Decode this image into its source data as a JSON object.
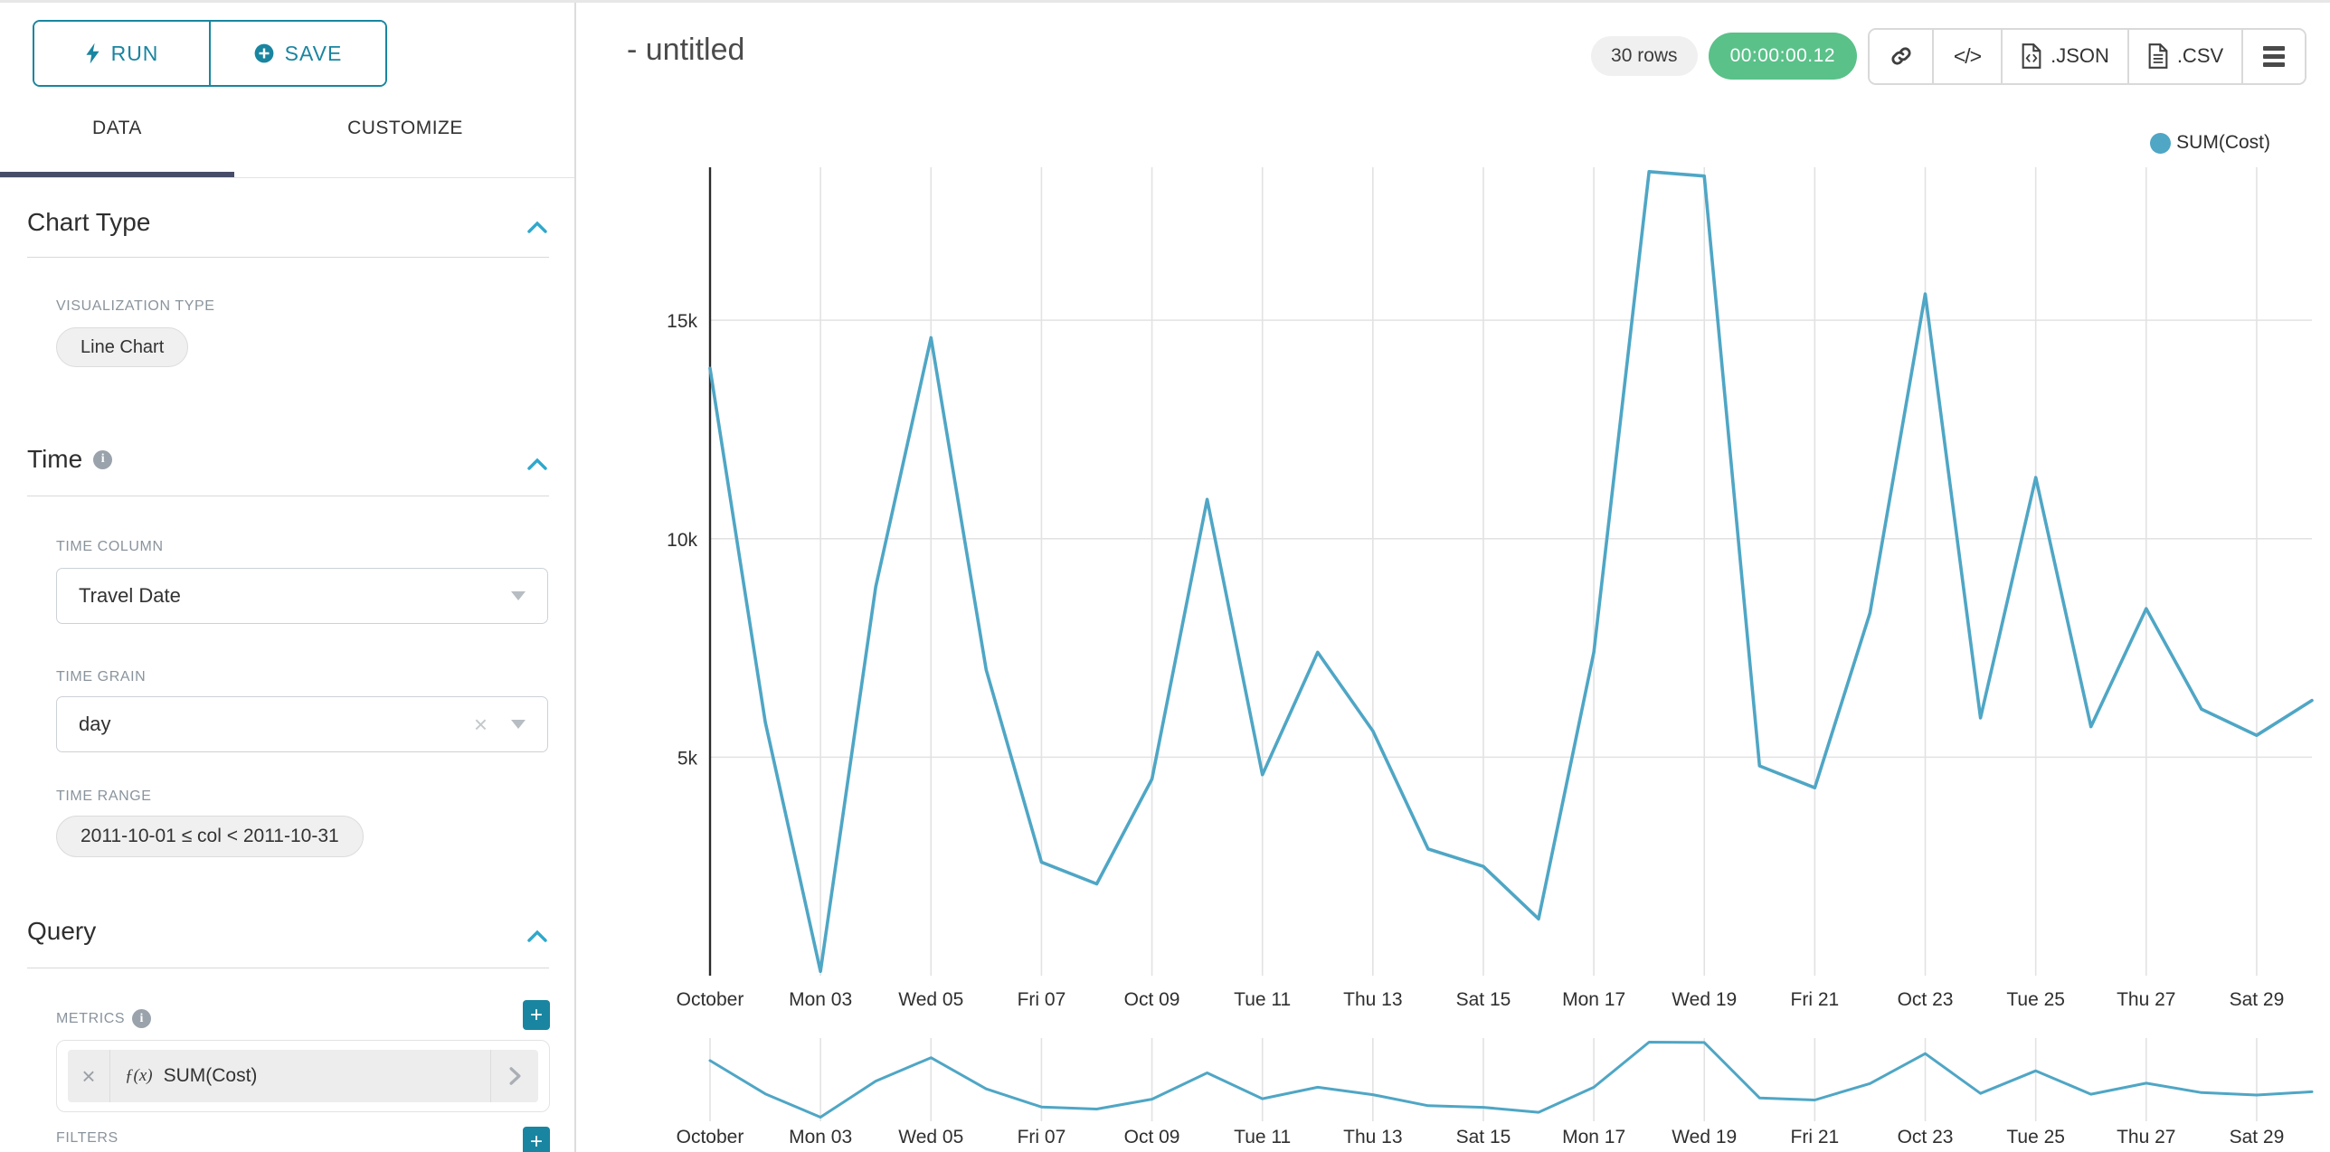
{
  "sidebar": {
    "run_button": {
      "label": "RUN"
    },
    "save_button": {
      "label": "SAVE"
    },
    "tabs": [
      {
        "label": "DATA"
      },
      {
        "label": "CUSTOMIZE"
      }
    ],
    "chart_type_section": {
      "title": "Chart Type",
      "visualization_type_label": "VISUALIZATION TYPE",
      "visualization_type_value": "Line Chart"
    },
    "time_section": {
      "title": "Time",
      "time_column_label": "TIME COLUMN",
      "time_column_value": "Travel Date",
      "time_grain_label": "TIME GRAIN",
      "time_grain_value": "day",
      "time_range_label": "TIME RANGE",
      "time_range_value": "2011-10-01 ≤ col < 2011-10-31"
    },
    "query_section": {
      "title": "Query",
      "metrics_label": "METRICS",
      "metric": {
        "fx": "ƒ(x)",
        "label": "SUM(Cost)"
      },
      "filters_label": "FILTERS"
    }
  },
  "header": {
    "title": "- untitled",
    "row_count_badge": "30 rows",
    "query_timer_badge": "00:00:00.12",
    "export_json_label": ".JSON",
    "export_csv_label": ".CSV"
  },
  "chart": {
    "legend": [
      {
        "label": "SUM(Cost)",
        "color": "#4fa6c5"
      }
    ]
  },
  "colors": {
    "primary_teal": "#1985a0",
    "accent_blue": "#2fa8cc",
    "success_green": "#5ac189",
    "tab_underline": "#474d69",
    "gridline": "#e2e2e2",
    "axis_line": "#2b2b2b"
  },
  "chart_data": {
    "type": "line",
    "title": "",
    "xlabel": "",
    "ylabel": "",
    "legend_position": "top-right",
    "grid": true,
    "has_range_selector_mini_chart": true,
    "x": [
      "2011-10-01",
      "2011-10-02",
      "2011-10-03",
      "2011-10-04",
      "2011-10-05",
      "2011-10-06",
      "2011-10-07",
      "2011-10-08",
      "2011-10-09",
      "2011-10-10",
      "2011-10-11",
      "2011-10-12",
      "2011-10-13",
      "2011-10-14",
      "2011-10-15",
      "2011-10-16",
      "2011-10-17",
      "2011-10-18",
      "2011-10-19",
      "2011-10-20",
      "2011-10-21",
      "2011-10-22",
      "2011-10-23",
      "2011-10-24",
      "2011-10-25",
      "2011-10-26",
      "2011-10-27",
      "2011-10-28",
      "2011-10-29",
      "2011-10-30"
    ],
    "series": [
      {
        "name": "SUM(Cost)",
        "color": "#4fa6c5",
        "values": [
          13900,
          5800,
          100,
          8900,
          14600,
          7000,
          2600,
          2100,
          4500,
          10900,
          4600,
          7400,
          5600,
          2900,
          2500,
          1300,
          7400,
          18400,
          18300,
          4800,
          4300,
          8300,
          15600,
          5900,
          11400,
          5700,
          8400,
          6100,
          5500,
          6300
        ]
      }
    ],
    "x_tick_positions": [
      0,
      2,
      4,
      6,
      8,
      10,
      12,
      14,
      16,
      18,
      20,
      22,
      24,
      26,
      28
    ],
    "x_tick_labels": [
      "October",
      "Mon 03",
      "Wed 05",
      "Fri 07",
      "Oct 09",
      "Tue 11",
      "Thu 13",
      "Sat 15",
      "Mon 17",
      "Wed 19",
      "Fri 21",
      "Oct 23",
      "Tue 25",
      "Thu 27",
      "Sat 29"
    ],
    "y_tick_values": [
      5000,
      10000,
      15000
    ],
    "y_tick_labels": [
      "5k",
      "10k",
      "15k"
    ],
    "y_domain": [
      0,
      18500
    ]
  }
}
